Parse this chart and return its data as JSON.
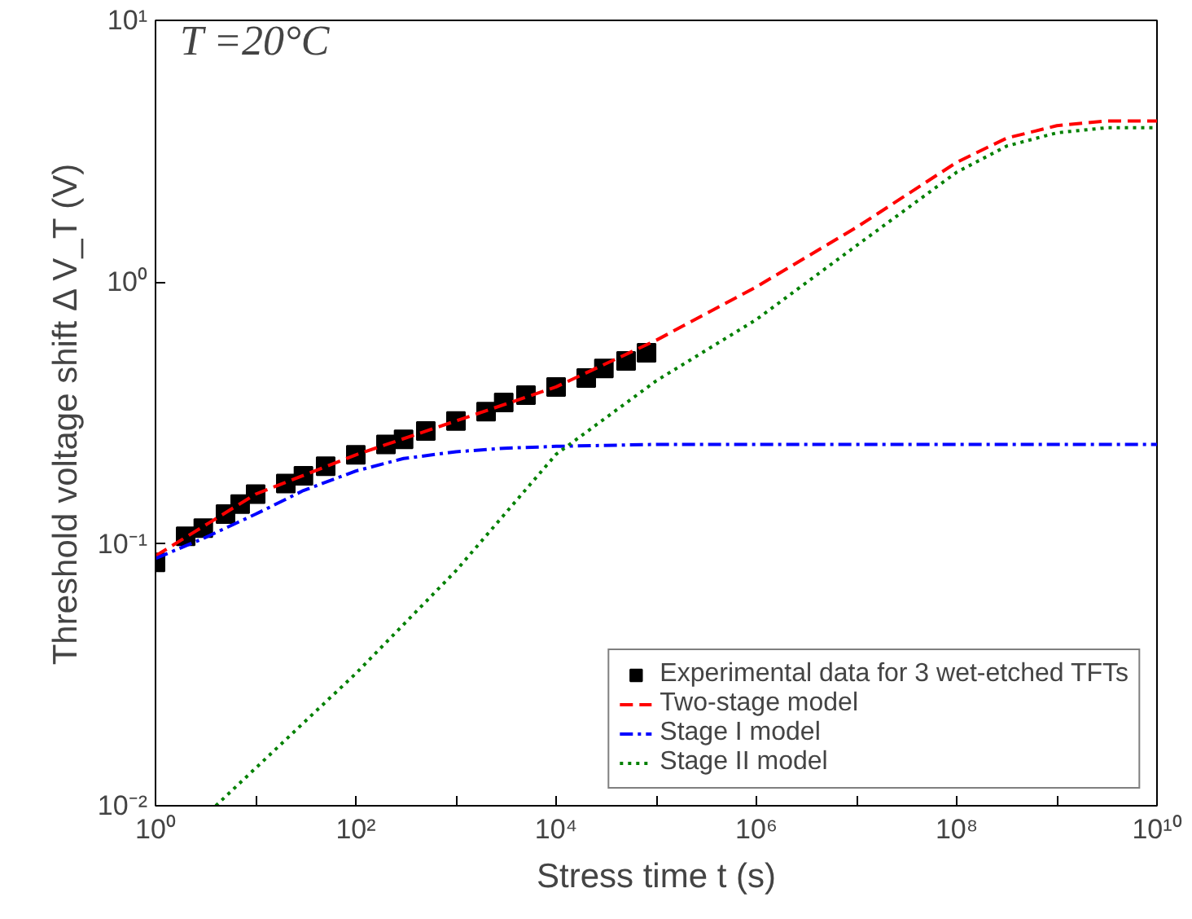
{
  "chart_data": {
    "type": "line",
    "xlabel": "Stress time t (s)",
    "ylabel": "Threshold voltage shift Δ V_T (V)",
    "log": "xy",
    "xlim": [
      1,
      10000000000
    ],
    "ylim": [
      0.01,
      10
    ],
    "xticks": [
      {
        "value": 1,
        "label": "10⁰"
      },
      {
        "value": 10,
        "label": null
      },
      {
        "value": 100,
        "label": "10²"
      },
      {
        "value": 1000,
        "label": null
      },
      {
        "value": 10000,
        "label": "10⁴"
      },
      {
        "value": 100000,
        "label": null
      },
      {
        "value": 1000000,
        "label": "10⁶"
      },
      {
        "value": 10000000,
        "label": null
      },
      {
        "value": 100000000,
        "label": "10⁸"
      },
      {
        "value": 1000000000,
        "label": null
      },
      {
        "value": 10000000000,
        "label": "10¹⁰"
      }
    ],
    "yticks": [
      {
        "value": 0.01,
        "label": "10⁻²"
      },
      {
        "value": 0.1,
        "label": "10⁻¹"
      },
      {
        "value": 1,
        "label": "10⁰"
      },
      {
        "value": 10,
        "label": "10¹"
      }
    ],
    "grid": false,
    "legend": "bottom right",
    "annotations": [
      "T =20°C"
    ],
    "series": [
      {
        "name": "Experimental data for 3 wet-etched TFTs",
        "type": "scatter",
        "marker": "square",
        "color": "#000000",
        "x": [
          1,
          2,
          3,
          5,
          7,
          10,
          20,
          30,
          50,
          100,
          200,
          300,
          500,
          1000,
          2000,
          3000,
          5000,
          10000,
          20000,
          30000,
          50000,
          80000
        ],
        "values": [
          0.085,
          0.107,
          0.115,
          0.13,
          0.142,
          0.155,
          0.17,
          0.182,
          0.198,
          0.219,
          0.24,
          0.251,
          0.27,
          0.295,
          0.32,
          0.347,
          0.37,
          0.398,
          0.43,
          0.468,
          0.5,
          0.537
        ]
      },
      {
        "name": "Two-stage model",
        "line_style": "dashed",
        "color": "#ff0000",
        "x": [
          1,
          10,
          100,
          1000,
          10000,
          100000,
          1000000,
          10000000,
          100000000,
          316000000,
          1000000000,
          3160000000,
          10000000000
        ],
        "values": [
          0.09,
          0.155,
          0.219,
          0.295,
          0.398,
          0.6,
          0.96,
          1.62,
          2.87,
          3.55,
          3.96,
          4.13,
          4.13
        ]
      },
      {
        "name": "Stage I model",
        "line_style": "dashdot",
        "color": "#0000ff",
        "x": [
          1,
          3,
          10,
          30,
          100,
          300,
          1000,
          3000,
          10000,
          100000,
          10000000000
        ],
        "values": [
          0.088,
          0.105,
          0.13,
          0.16,
          0.19,
          0.212,
          0.225,
          0.232,
          0.236,
          0.24,
          0.24
        ]
      },
      {
        "name": "Stage II model",
        "line_style": "dotted",
        "color": "#008000",
        "x": [
          4,
          100,
          1000,
          10000,
          100000,
          1000000,
          10000000,
          100000000,
          316000000,
          1000000000,
          3160000000,
          10000000000
        ],
        "values": [
          0.01,
          0.032,
          0.079,
          0.22,
          0.42,
          0.72,
          1.38,
          2.63,
          3.31,
          3.72,
          3.89,
          3.89
        ]
      }
    ]
  }
}
